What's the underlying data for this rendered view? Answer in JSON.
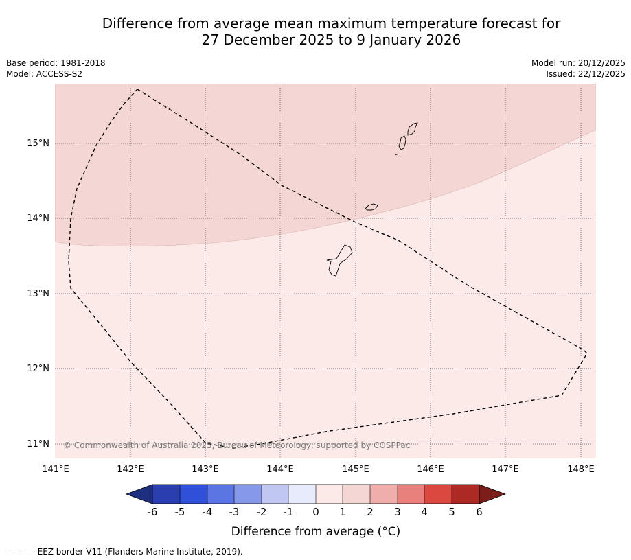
{
  "title": {
    "line1": "Difference from average mean maximum temperature forecast for",
    "line2": "27 December 2025 to 9 January 2026"
  },
  "meta_left": {
    "base_period": "Base period: 1981-2018",
    "model": "Model: ACCESS-S2"
  },
  "meta_right": {
    "model_run": "Model run: 20/12/2025",
    "issued": "Issued: 22/12/2025"
  },
  "map": {
    "lon_ticks": [
      "141°E",
      "142°E",
      "143°E",
      "144°E",
      "145°E",
      "146°E",
      "147°E",
      "148°E"
    ],
    "lat_ticks": [
      "15°N",
      "14°N",
      "13°N",
      "12°N",
      "11°N"
    ],
    "copyright": "© Commonwealth of Australia 2025, Bureau of Meteorology, supported by COSPPac",
    "regions": [
      {
        "name": "1 to 2 °C above average",
        "color": "#f4d6d4"
      },
      {
        "name": "0 to 1 °C above average",
        "color": "#fbeae8"
      }
    ]
  },
  "colorbar": {
    "ticks": [
      "-6",
      "-5",
      "-4",
      "-3",
      "-2",
      "-1",
      "0",
      "1",
      "2",
      "3",
      "4",
      "5",
      "6"
    ],
    "colors": [
      "#1f2f80",
      "#2a3eb0",
      "#3050d9",
      "#5b75e3",
      "#8598ea",
      "#c0c8f2",
      "#e7ebfb",
      "#fbeae8",
      "#f4d6d4",
      "#efaeab",
      "#e8817c",
      "#da4840",
      "#ad2a24",
      "#7a1d1b"
    ],
    "label": "Difference from average (°C)"
  },
  "footer": {
    "dash_symbol": "-- -- --",
    "text": "EEZ border V11 (Flanders Marine Institute, 2019)."
  }
}
